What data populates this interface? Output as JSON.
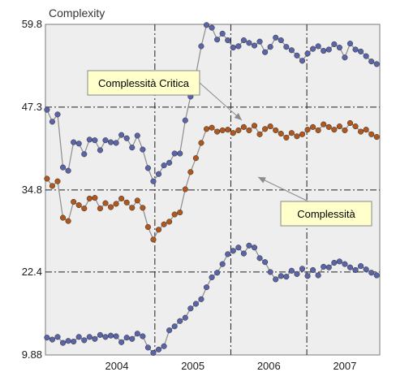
{
  "chart_data": {
    "type": "line",
    "title": "",
    "ylabel": "Complexity",
    "xlabel": "",
    "ylim": [
      9.88,
      59.8
    ],
    "y_ticks": [
      "9.88",
      "22.4",
      "34.8",
      "47.3",
      "59.8"
    ],
    "x_categories": [
      "2004",
      "2005",
      "2006",
      "2007"
    ],
    "x_range": [
      2003.56,
      2007.96
    ],
    "grid": true,
    "legend": "none",
    "series": [
      {
        "name": "Complessità Critica",
        "color": "#5a64a8",
        "x": [
          2003.58,
          2003.65,
          2003.72,
          2003.79,
          2003.86,
          2003.93,
          2004.0,
          2004.07,
          2004.14,
          2004.21,
          2004.28,
          2004.35,
          2004.42,
          2004.49,
          2004.56,
          2004.63,
          2004.7,
          2004.77,
          2004.84,
          2004.91,
          2004.98,
          2005.05,
          2005.12,
          2005.19,
          2005.26,
          2005.33,
          2005.4,
          2005.47,
          2005.54,
          2005.61,
          2005.68,
          2005.75,
          2005.82,
          2005.89,
          2005.96,
          2006.03,
          2006.1,
          2006.17,
          2006.24,
          2006.31,
          2006.38,
          2006.45,
          2006.52,
          2006.59,
          2006.66,
          2006.73,
          2006.8,
          2006.87,
          2006.94,
          2007.01,
          2007.08,
          2007.15,
          2007.22,
          2007.29,
          2007.36,
          2007.43,
          2007.5,
          2007.57,
          2007.64,
          2007.71,
          2007.78,
          2007.85,
          2007.92
        ],
        "values": [
          46.9,
          45.1,
          46.2,
          38.2,
          37.7,
          42.0,
          41.8,
          40.2,
          42.4,
          42.3,
          40.8,
          42.3,
          42.0,
          41.9,
          43.1,
          42.6,
          41.2,
          43.0,
          40.9,
          38.1,
          36.1,
          37.2,
          38.5,
          38.9,
          40.3,
          40.3,
          45.3,
          48.9,
          52.2,
          56.5,
          59.7,
          59.3,
          57.5,
          58.4,
          57.4,
          56.3,
          56.5,
          57.4,
          57.0,
          56.6,
          57.2,
          55.6,
          56.4,
          57.8,
          57.4,
          56.4,
          55.9,
          55.1,
          54.3,
          55.4,
          56.1,
          56.5,
          55.8,
          56.0,
          56.8,
          56.3,
          54.8,
          56.9,
          56.0,
          55.7,
          55.0,
          54.2,
          53.8
        ]
      },
      {
        "name": "Complessità",
        "color": "#b0571e",
        "x": [
          2003.58,
          2003.65,
          2003.72,
          2003.79,
          2003.86,
          2003.93,
          2004.0,
          2004.07,
          2004.14,
          2004.21,
          2004.28,
          2004.35,
          2004.42,
          2004.49,
          2004.56,
          2004.63,
          2004.7,
          2004.77,
          2004.84,
          2004.91,
          2004.98,
          2005.05,
          2005.12,
          2005.19,
          2005.26,
          2005.33,
          2005.4,
          2005.47,
          2005.54,
          2005.61,
          2005.68,
          2005.75,
          2005.82,
          2005.89,
          2005.96,
          2006.03,
          2006.1,
          2006.17,
          2006.24,
          2006.31,
          2006.38,
          2006.45,
          2006.52,
          2006.59,
          2006.66,
          2006.73,
          2006.8,
          2006.87,
          2006.94,
          2007.01,
          2007.08,
          2007.15,
          2007.22,
          2007.29,
          2007.36,
          2007.43,
          2007.5,
          2007.57,
          2007.64,
          2007.71,
          2007.78,
          2007.85,
          2007.92
        ],
        "values": [
          36.5,
          35.4,
          36.1,
          30.6,
          30.1,
          33.0,
          32.5,
          32.0,
          33.5,
          33.6,
          32.0,
          32.8,
          32.2,
          32.7,
          33.5,
          32.9,
          32.1,
          33.2,
          32.1,
          29.2,
          27.3,
          28.8,
          29.6,
          30.0,
          31.1,
          31.4,
          34.9,
          37.5,
          39.6,
          41.9,
          44.0,
          44.2,
          43.6,
          43.8,
          43.9,
          43.4,
          43.8,
          44.3,
          43.8,
          44.5,
          43.2,
          44.0,
          44.4,
          43.8,
          43.3,
          42.7,
          43.4,
          42.9,
          43.2,
          43.9,
          44.3,
          43.8,
          44.7,
          44.3,
          43.9,
          44.4,
          43.8,
          44.9,
          44.4,
          43.6,
          43.9,
          43.2,
          42.8
        ]
      },
      {
        "name": "",
        "color": "#5a64a8",
        "x": [
          2003.58,
          2003.65,
          2003.72,
          2003.79,
          2003.86,
          2003.93,
          2004.0,
          2004.07,
          2004.14,
          2004.21,
          2004.28,
          2004.35,
          2004.42,
          2004.49,
          2004.56,
          2004.63,
          2004.7,
          2004.77,
          2004.84,
          2004.91,
          2004.98,
          2005.05,
          2005.12,
          2005.19,
          2005.26,
          2005.33,
          2005.4,
          2005.47,
          2005.54,
          2005.61,
          2005.68,
          2005.75,
          2005.82,
          2005.89,
          2005.96,
          2006.03,
          2006.1,
          2006.17,
          2006.24,
          2006.31,
          2006.38,
          2006.45,
          2006.52,
          2006.59,
          2006.66,
          2006.73,
          2006.8,
          2006.87,
          2006.94,
          2007.01,
          2007.08,
          2007.15,
          2007.22,
          2007.29,
          2007.36,
          2007.43,
          2007.5,
          2007.57,
          2007.64,
          2007.71,
          2007.78,
          2007.85,
          2007.92
        ],
        "values": [
          12.5,
          12.2,
          12.6,
          11.7,
          12.0,
          11.9,
          12.6,
          12.1,
          12.6,
          12.3,
          12.9,
          12.6,
          12.8,
          12.7,
          11.8,
          12.5,
          12.3,
          13.1,
          12.7,
          11.0,
          10.2,
          10.7,
          11.2,
          13.6,
          14.2,
          15.0,
          15.5,
          16.9,
          17.6,
          18.3,
          20.1,
          21.6,
          22.3,
          23.6,
          25.1,
          25.6,
          26.1,
          25.2,
          26.4,
          26.1,
          24.5,
          23.9,
          22.4,
          21.3,
          21.8,
          21.7,
          22.6,
          22.1,
          22.9,
          21.8,
          22.7,
          21.9,
          23.2,
          23.1,
          23.8,
          24.0,
          23.6,
          23.1,
          22.7,
          23.3,
          22.8,
          22.3,
          21.9
        ]
      }
    ],
    "annotations": [
      {
        "text": "Complessità Critica",
        "points_to_series": 0
      },
      {
        "text": "Complessità",
        "points_to_series": 1
      }
    ]
  }
}
